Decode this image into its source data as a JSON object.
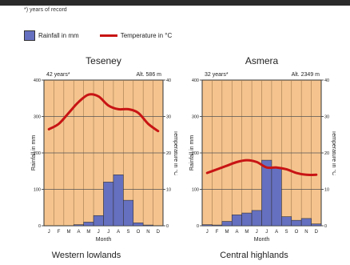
{
  "footnote": "*) years of record",
  "legend": {
    "rainfall": "Rainfall in mm",
    "temperature": "Temperature in °C",
    "bar_color": "#6670c0",
    "line_color": "#c81414",
    "background_color": "#f5c48e"
  },
  "chart_data": [
    {
      "type": "bar+line",
      "title": "Teseney",
      "years": "42 years*",
      "altitude": "Alt. 586 m",
      "region": "Western lowlands",
      "xlabel": "Month",
      "ylabel_left": "Rainfall in mm",
      "ylabel_right": "Temperature in °C",
      "categories": [
        "J",
        "F",
        "M",
        "A",
        "M",
        "J",
        "J",
        "A",
        "S",
        "O",
        "N",
        "D"
      ],
      "y_left_ticks": [
        0,
        100,
        200,
        300,
        400
      ],
      "y_right_ticks": [
        0,
        10,
        20,
        30,
        40
      ],
      "ylim_left": [
        0,
        400
      ],
      "ylim_right": [
        0,
        40
      ],
      "series": [
        {
          "type": "bar",
          "axis": "left",
          "values": [
            0,
            0,
            0,
            3,
            10,
            28,
            120,
            140,
            70,
            8,
            2,
            0
          ]
        },
        {
          "type": "line",
          "axis": "right",
          "values": [
            26.5,
            28,
            31,
            34,
            36,
            35.5,
            33,
            32,
            32,
            31,
            28,
            26
          ]
        }
      ]
    },
    {
      "type": "bar+line",
      "title": "Asmera",
      "years": "32 years*",
      "altitude": "Alt. 2349 m",
      "region": "Central highlands",
      "xlabel": "Month",
      "ylabel_left": "Rainfall in mm",
      "ylabel_right": "Temperature in °C",
      "categories": [
        "J",
        "F",
        "M",
        "A",
        "M",
        "J",
        "J",
        "A",
        "S",
        "O",
        "N",
        "D"
      ],
      "y_left_ticks": [
        0,
        100,
        200,
        300,
        400
      ],
      "y_right_ticks": [
        0,
        10,
        20,
        30,
        40
      ],
      "ylim_left": [
        0,
        400
      ],
      "ylim_right": [
        0,
        40
      ],
      "series": [
        {
          "type": "bar",
          "axis": "left",
          "values": [
            3,
            2,
            12,
            30,
            35,
            42,
            180,
            160,
            25,
            15,
            20,
            5
          ]
        },
        {
          "type": "line",
          "axis": "right",
          "values": [
            14.5,
            15.5,
            16.5,
            17.5,
            18,
            17.5,
            16,
            16,
            15.5,
            14.5,
            14,
            14
          ]
        }
      ]
    }
  ]
}
